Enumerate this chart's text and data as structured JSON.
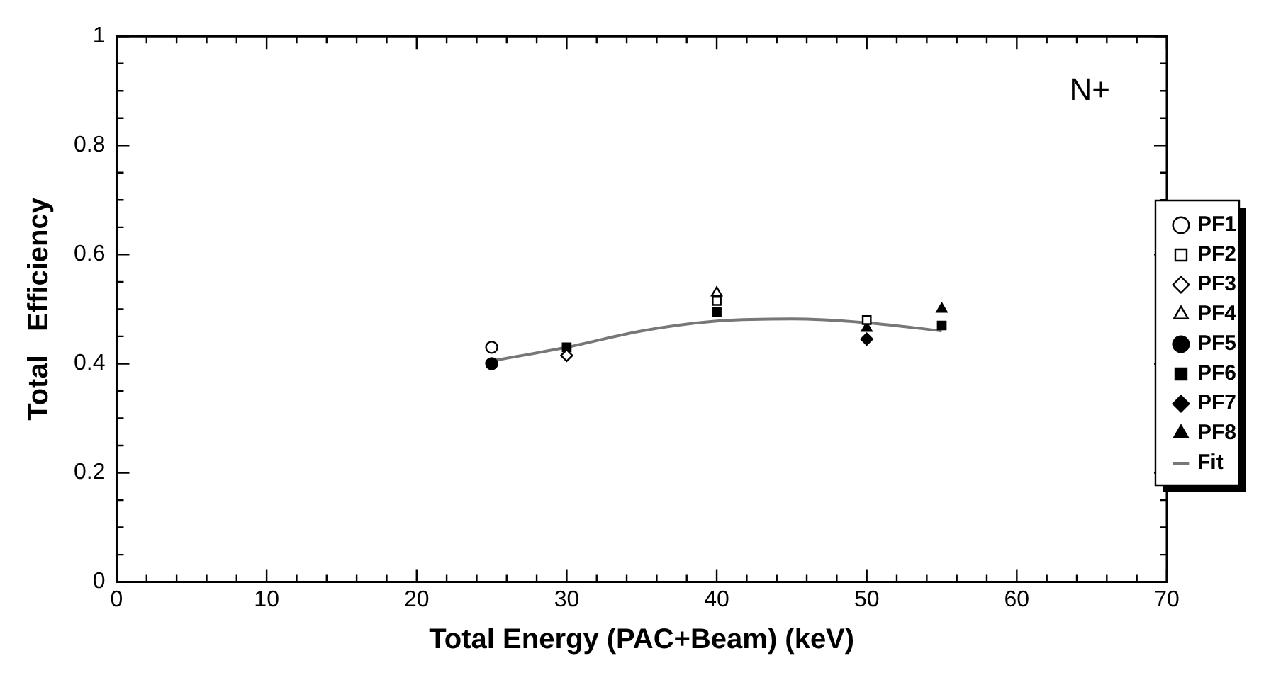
{
  "chart_data": {
    "type": "scatter",
    "xlabel": "Total Energy (PAC+Beam) (keV)",
    "ylabel": "Total   Efficiency",
    "annotations": [
      "N+"
    ],
    "xlim": [
      0,
      70
    ],
    "ylim": [
      0,
      1
    ],
    "xticks": [
      0,
      {
        "value": 2,
        "label": null
      },
      {
        "value": 4,
        "label": null
      },
      {
        "value": 6,
        "label": null
      },
      {
        "value": 8,
        "label": null
      },
      10,
      {
        "value": 12,
        "label": null
      },
      {
        "value": 14,
        "label": null
      },
      {
        "value": 16,
        "label": null
      },
      {
        "value": 18,
        "label": null
      },
      20,
      {
        "value": 22,
        "label": null
      },
      {
        "value": 24,
        "label": null
      },
      {
        "value": 26,
        "label": null
      },
      {
        "value": 28,
        "label": null
      },
      30,
      {
        "value": 32,
        "label": null
      },
      {
        "value": 34,
        "label": null
      },
      {
        "value": 36,
        "label": null
      },
      {
        "value": 38,
        "label": null
      },
      40,
      {
        "value": 42,
        "label": null
      },
      {
        "value": 44,
        "label": null
      },
      {
        "value": 46,
        "label": null
      },
      {
        "value": 48,
        "label": null
      },
      50,
      {
        "value": 52,
        "label": null
      },
      {
        "value": 54,
        "label": null
      },
      {
        "value": 56,
        "label": null
      },
      {
        "value": 58,
        "label": null
      },
      60,
      {
        "value": 62,
        "label": null
      },
      {
        "value": 64,
        "label": null
      },
      {
        "value": 66,
        "label": null
      },
      {
        "value": 68,
        "label": null
      },
      70
    ],
    "yticks": [
      0,
      {
        "value": 0.05,
        "label": null
      },
      {
        "value": 0.1,
        "label": null
      },
      {
        "value": 0.15,
        "label": null
      },
      0.2,
      {
        "value": 0.25,
        "label": null
      },
      {
        "value": 0.3,
        "label": null
      },
      {
        "value": 0.35,
        "label": null
      },
      0.4,
      {
        "value": 0.45,
        "label": null
      },
      {
        "value": 0.5,
        "label": null
      },
      {
        "value": 0.55,
        "label": null
      },
      0.6,
      {
        "value": 0.65,
        "label": null
      },
      {
        "value": 0.7,
        "label": null
      },
      {
        "value": 0.75,
        "label": null
      },
      0.8,
      {
        "value": 0.85,
        "label": null
      },
      {
        "value": 0.9,
        "label": null
      },
      {
        "value": 0.95,
        "label": null
      },
      1
    ],
    "x": [
      25,
      30,
      40,
      50,
      55
    ],
    "grid": false,
    "legend": "right",
    "series": [
      {
        "name": "PF1",
        "color": "#ffffff",
        "marker": "circle",
        "values": [
          0.43,
          null,
          null,
          null,
          null
        ]
      },
      {
        "name": "PF2",
        "color": "#ffffff",
        "marker": "square",
        "values": [
          null,
          null,
          0.515,
          0.48,
          null
        ]
      },
      {
        "name": "PF3",
        "color": "#ffffff",
        "marker": "diamond",
        "values": [
          null,
          0.415,
          null,
          null,
          null
        ]
      },
      {
        "name": "PF4",
        "color": "#ffffff",
        "marker": "triangle",
        "values": [
          null,
          null,
          0.53,
          null,
          null
        ]
      },
      {
        "name": "PF5",
        "color": "#000000",
        "marker": "circle",
        "values": [
          0.4,
          null,
          null,
          null,
          null
        ]
      },
      {
        "name": "PF6",
        "color": "#000000",
        "marker": "square",
        "values": [
          null,
          0.43,
          0.495,
          null,
          0.47
        ]
      },
      {
        "name": "PF7",
        "color": "#000000",
        "marker": "diamond",
        "values": [
          null,
          null,
          null,
          0.445,
          null
        ]
      },
      {
        "name": "PF8",
        "color": "#000000",
        "marker": "triangle",
        "values": [
          null,
          null,
          null,
          0.465,
          0.5
        ]
      },
      {
        "name": "Fit",
        "type": "line",
        "color": "#777777",
        "marker": "none",
        "x": [
          25,
          30,
          35,
          40,
          45,
          50,
          55
        ],
        "values": [
          0.405,
          0.43,
          0.46,
          0.478,
          0.482,
          0.475,
          0.46
        ]
      }
    ]
  }
}
